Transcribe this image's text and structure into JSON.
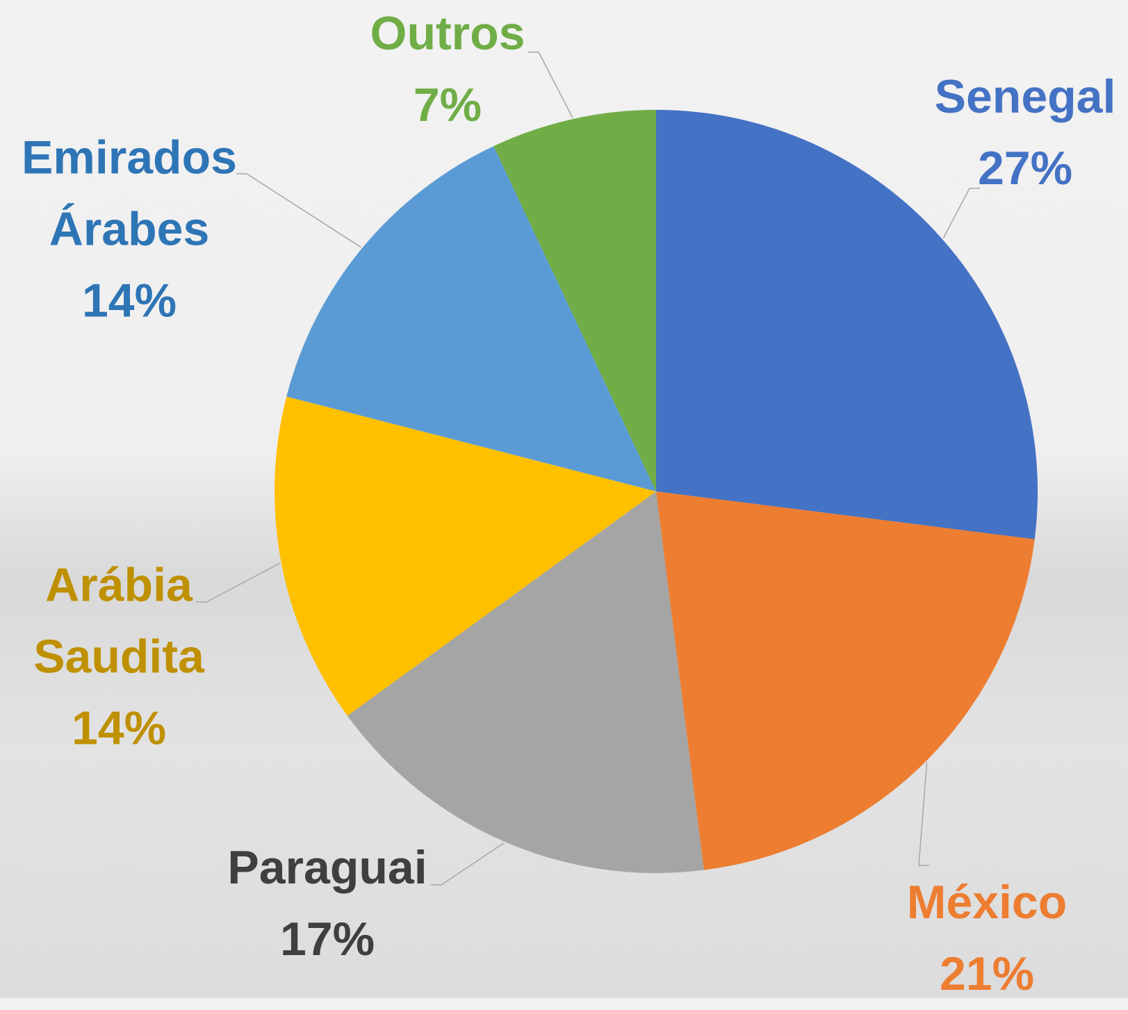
{
  "chart_data": {
    "type": "pie",
    "categories": [
      "Senegal",
      "México",
      "Paraguai",
      "Arábia Saudita",
      "Emirados Árabes",
      "Outros"
    ],
    "values": [
      27,
      21,
      17,
      14,
      14,
      7
    ],
    "value_labels": [
      "27%",
      "21%",
      "17%",
      "14%",
      "14%",
      "7%"
    ],
    "colors": [
      "#4472c4",
      "#ed7d31",
      "#a5a5a5",
      "#ffc000",
      "#5b9bd5",
      "#70ad47"
    ],
    "label_colors": [
      "#4472c4",
      "#ed7d31",
      "#3f3f3f",
      "#bf9000",
      "#2e75b6",
      "#70ad47"
    ]
  }
}
